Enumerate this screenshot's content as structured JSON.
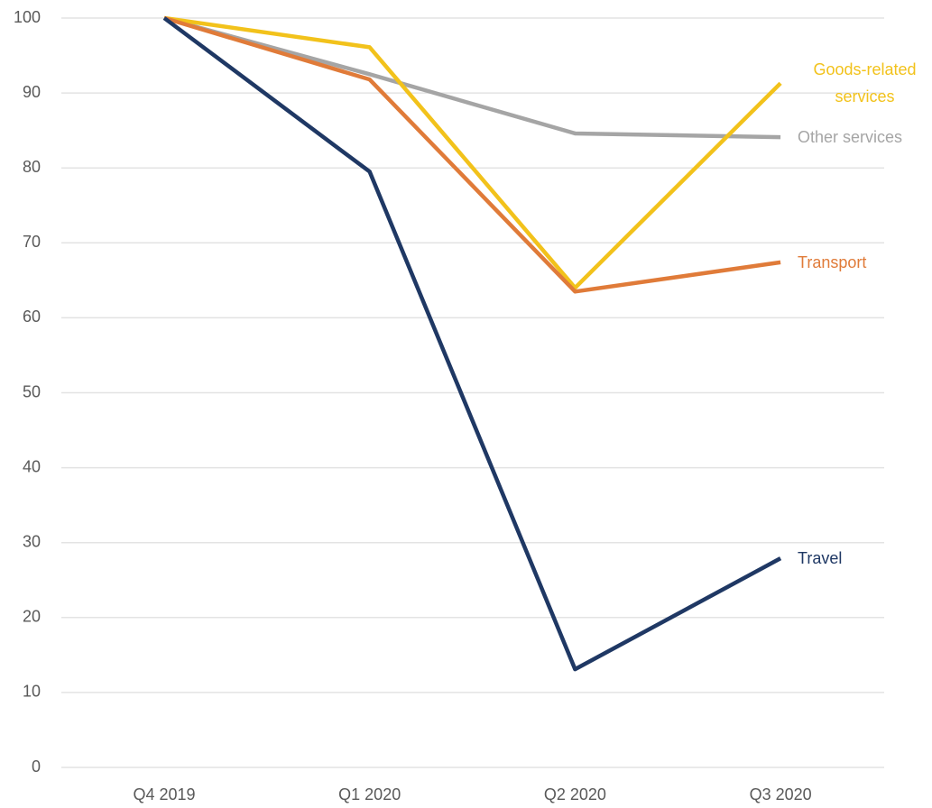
{
  "chart_data": {
    "type": "line",
    "categories": [
      "Q4 2019",
      "Q1 2020",
      "Q2 2020",
      "Q3 2020"
    ],
    "series": [
      {
        "name": "Other services",
        "color": "#a5a5a5",
        "values": [
          100,
          92.5,
          84.6,
          84.1
        ]
      },
      {
        "name": "Goods-related services",
        "color": "#f2c21b",
        "values": [
          100,
          96.1,
          64,
          91.3
        ]
      },
      {
        "name": "Transport",
        "color": "#e07b39",
        "values": [
          100,
          91.8,
          63.5,
          67.4
        ]
      },
      {
        "name": "Travel",
        "color": "#1f3864",
        "values": [
          100,
          79.5,
          13.1,
          27.9
        ]
      }
    ],
    "ylim": [
      0,
      100
    ],
    "yticks": [
      0,
      10,
      20,
      30,
      40,
      50,
      60,
      70,
      80,
      90,
      100
    ],
    "grid": true
  }
}
